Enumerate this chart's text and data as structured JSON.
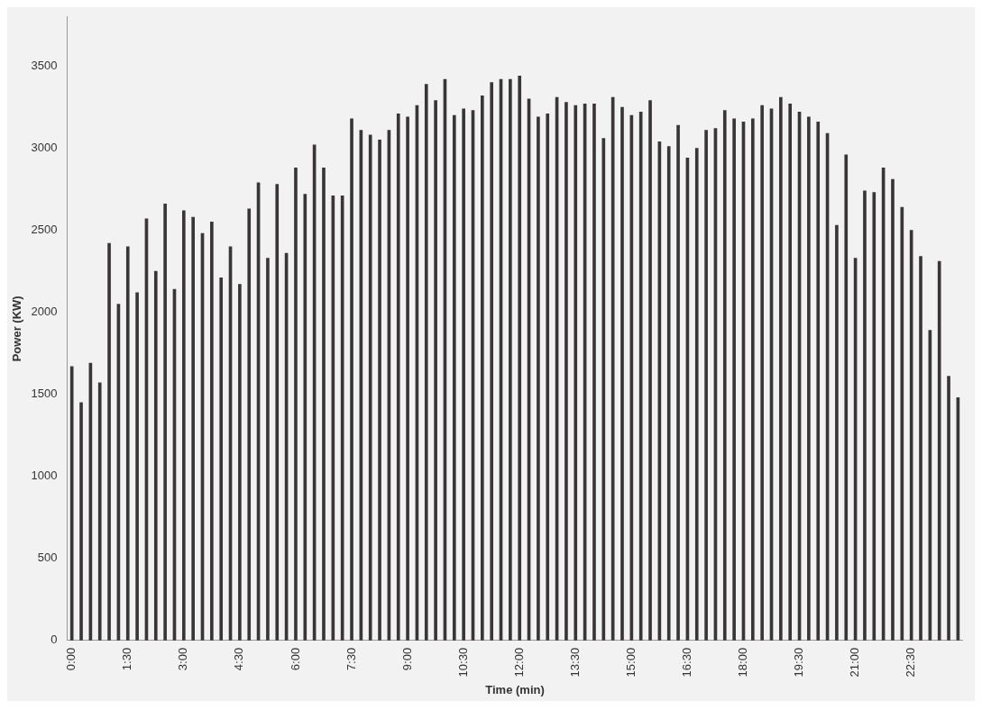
{
  "chart_data": {
    "type": "bar",
    "xlabel": "Time (min)",
    "ylabel": "Power (KW)",
    "categories": [
      "0:00",
      null,
      null,
      null,
      null,
      null,
      "1:30",
      null,
      null,
      null,
      null,
      null,
      "3:00",
      null,
      null,
      null,
      null,
      null,
      "4:30",
      null,
      null,
      null,
      null,
      null,
      "6:00",
      null,
      null,
      null,
      null,
      null,
      "7:30",
      null,
      null,
      null,
      null,
      null,
      "9:00",
      null,
      null,
      null,
      null,
      null,
      "10:30",
      null,
      null,
      null,
      null,
      null,
      "12:00",
      null,
      null,
      null,
      null,
      null,
      "13:30",
      null,
      null,
      null,
      null,
      null,
      "15:00",
      null,
      null,
      null,
      null,
      null,
      "16:30",
      null,
      null,
      null,
      null,
      null,
      "18:00",
      null,
      null,
      null,
      null,
      null,
      "19:30",
      null,
      null,
      null,
      null,
      null,
      "21:00",
      null,
      null,
      null,
      null,
      null,
      "22:30",
      null,
      null,
      null,
      null,
      null
    ],
    "values": [
      1670,
      1450,
      1690,
      1570,
      2420,
      2050,
      2400,
      2120,
      2570,
      2250,
      2660,
      2140,
      2620,
      2580,
      2480,
      2550,
      2210,
      2400,
      2170,
      2630,
      2790,
      2330,
      2780,
      2360,
      2880,
      2720,
      3020,
      2880,
      2710,
      2710,
      3180,
      3110,
      3080,
      3050,
      3110,
      3210,
      3190,
      3260,
      3390,
      3290,
      3420,
      3200,
      3240,
      3230,
      3320,
      3400,
      3420,
      3420,
      3440,
      3300,
      3190,
      3210,
      3310,
      3280,
      3260,
      3270,
      3270,
      3060,
      3310,
      3250,
      3200,
      3220,
      3290,
      3040,
      3010,
      3140,
      2940,
      3000,
      3110,
      3120,
      3230,
      3180,
      3160,
      3180,
      3260,
      3240,
      3310,
      3270,
      3220,
      3190,
      3160,
      3090,
      2530,
      2960,
      2330,
      2740,
      2730,
      2880,
      2810,
      2640,
      2500,
      2340,
      1890,
      2310,
      1610,
      1480
    ],
    "color": "#3a3637",
    "ylim": [
      0,
      3800
    ],
    "yticks": [
      0,
      500,
      1000,
      1500,
      2000,
      2500,
      3000,
      3500
    ],
    "grid": false,
    "legend": false
  }
}
